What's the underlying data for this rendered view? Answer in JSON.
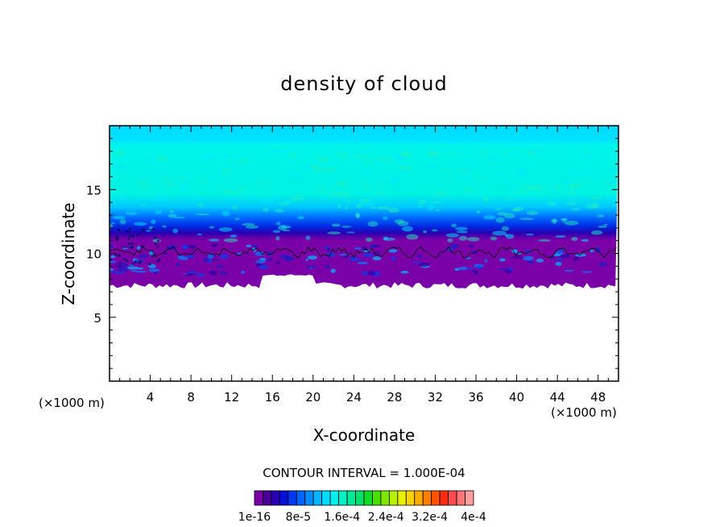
{
  "chart_data": {
    "type": "contour",
    "title": "density of cloud",
    "xlabel": "X-coordinate",
    "ylabel": "Z-coordinate",
    "x_unit_label_left": "(×1000 m)",
    "x_unit_label_right": "(×1000 m)",
    "xlim": [
      0,
      50
    ],
    "ylim": [
      0,
      20
    ],
    "x_ticks": [
      4,
      8,
      12,
      16,
      20,
      24,
      28,
      32,
      36,
      40,
      44,
      48
    ],
    "x_tick_labels": [
      "4",
      "8",
      "12",
      "16",
      "20",
      "24",
      "28",
      "32",
      "36",
      "40",
      "44",
      "48"
    ],
    "y_ticks": [
      5,
      10,
      15
    ],
    "y_tick_labels": [
      "5",
      "10",
      "15"
    ],
    "contour_interval_text": "CONTOUR INTERVAL = 1.000E-04",
    "colorbar": {
      "colors": [
        "#7a00a8",
        "#4a0098",
        "#2800b4",
        "#0010d8",
        "#0038f0",
        "#0062ff",
        "#008cff",
        "#00b6ff",
        "#00dcff",
        "#00f0f0",
        "#00f0c4",
        "#00e89a",
        "#00e06c",
        "#10dc28",
        "#48e000",
        "#80e800",
        "#b8f000",
        "#e8f000",
        "#f8d200",
        "#ffaa00",
        "#ff7e00",
        "#ff5200",
        "#ff2c10",
        "#ff4c4c",
        "#ff7676",
        "#ff9e9e"
      ],
      "labels": [
        "1e-16",
        "8e-5",
        "1.6e-4",
        "2.4e-4",
        "3.2e-4",
        "4e-4"
      ]
    },
    "field": {
      "cloud_base_z": 7.5,
      "cloud_top_z": 19.5,
      "dominant_top_color": "#00e0ff",
      "dominant_mid_color": "#00f5e6"
    }
  }
}
